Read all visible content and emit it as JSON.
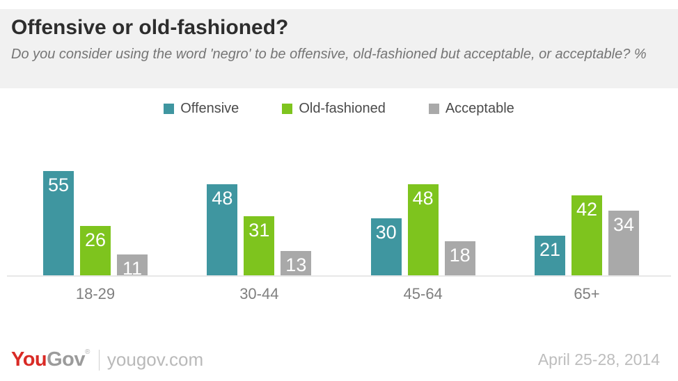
{
  "chart_data": {
    "type": "bar",
    "title": "Offensive or old-fashioned?",
    "subtitle": "Do you consider using the word 'negro' to be offensive, old-fashioned but acceptable, or acceptable? %",
    "categories": [
      "18-29",
      "30-44",
      "45-64",
      "65+"
    ],
    "series": [
      {
        "name": "Offensive",
        "color": "#3f96a0",
        "values": [
          55,
          48,
          30,
          21
        ]
      },
      {
        "name": "Old-fashioned",
        "color": "#7ec41e",
        "values": [
          26,
          31,
          48,
          42
        ]
      },
      {
        "name": "Acceptable",
        "color": "#a9a9a9",
        "values": [
          11,
          13,
          18,
          34
        ]
      }
    ],
    "value_labels": true,
    "ylim": [
      0,
      60
    ],
    "grid": false,
    "legend_position": "top"
  },
  "colors": {
    "header_background": "#f1f1f1",
    "teal": "#3f96a0",
    "green": "#7ec41e",
    "gray": "#a9a9a9",
    "logo_red": "#d92b26",
    "axis_line": "#e7e7e7"
  },
  "footer": {
    "logo_you": "You",
    "logo_gov": "Gov",
    "logo_reg": "®",
    "site": "yougov.com",
    "date": "April 25-28, 2014"
  }
}
